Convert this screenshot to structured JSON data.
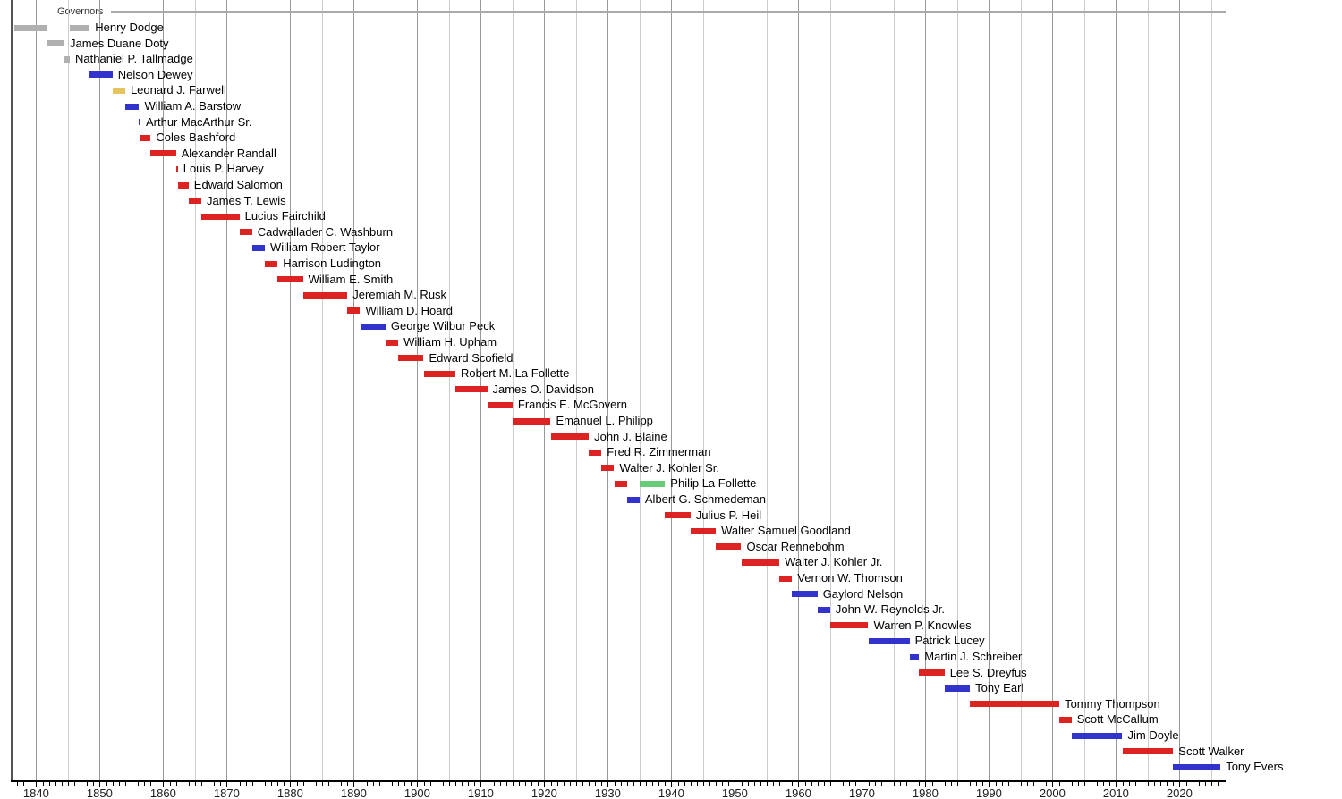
{
  "chart_data": {
    "type": "timeline-gantt",
    "title": "Governors",
    "description": "Timeline of Wisconsin governors with one horizontal bar per term, colored by party",
    "x_axis": {
      "min": 1836,
      "max": 2027.3,
      "gridline_step_years": 5,
      "minor_tick_step_years": 1,
      "tick_labels": [
        "1840",
        "1850",
        "1860",
        "1870",
        "1880",
        "1890",
        "1900",
        "1910",
        "1920",
        "1930",
        "1940",
        "1950",
        "1960",
        "1970",
        "1980",
        "1990",
        "2000",
        "2010",
        "2020"
      ],
      "tick_label_years": [
        1840,
        1850,
        1860,
        1870,
        1880,
        1890,
        1900,
        1910,
        1920,
        1930,
        1940,
        1950,
        1960,
        1970,
        1980,
        1990,
        2000,
        2010,
        2020
      ]
    },
    "colors": {
      "territorial": "#b0b0b0",
      "democratic": "#3232cd",
      "republican": "#dd2222",
      "whig": "#e6c35c",
      "progressive": "#66cc77",
      "grid_minor": "#cccccc",
      "grid_major": "#999999",
      "header_line": "#aaaaaa",
      "axis": "#000000"
    },
    "rows": [
      {
        "name": "Henry Dodge",
        "terms": [
          {
            "start": 1836.5,
            "end": 1841.7,
            "party": "territorial"
          },
          {
            "start": 1845.3,
            "end": 1848.43,
            "party": "territorial"
          }
        ]
      },
      {
        "name": "James Duane Doty",
        "terms": [
          {
            "start": 1841.7,
            "end": 1844.45,
            "party": "territorial"
          }
        ]
      },
      {
        "name": "Nathaniel P. Tallmadge",
        "terms": [
          {
            "start": 1844.45,
            "end": 1845.3,
            "party": "territorial"
          }
        ]
      },
      {
        "name": "Nelson Dewey",
        "terms": [
          {
            "start": 1848.43,
            "end": 1852.02,
            "party": "democratic"
          }
        ]
      },
      {
        "name": "Leonard J. Farwell",
        "terms": [
          {
            "start": 1852.02,
            "end": 1854.02,
            "party": "whig"
          }
        ]
      },
      {
        "name": "William A. Barstow",
        "terms": [
          {
            "start": 1854.02,
            "end": 1856.21,
            "party": "democratic"
          }
        ]
      },
      {
        "name": "Arthur MacArthur Sr.",
        "terms": [
          {
            "start": 1856.21,
            "end": 1856.24,
            "party": "democratic"
          }
        ]
      },
      {
        "name": "Coles Bashford",
        "terms": [
          {
            "start": 1856.24,
            "end": 1858.02,
            "party": "republican"
          }
        ]
      },
      {
        "name": "Alexander Randall",
        "terms": [
          {
            "start": 1858.02,
            "end": 1862.0,
            "party": "republican"
          }
        ]
      },
      {
        "name": "Louis P. Harvey",
        "terms": [
          {
            "start": 1862.0,
            "end": 1862.3,
            "party": "republican"
          }
        ]
      },
      {
        "name": "Edward Salomon",
        "terms": [
          {
            "start": 1862.3,
            "end": 1864.0,
            "party": "republican"
          }
        ]
      },
      {
        "name": "James T. Lewis",
        "terms": [
          {
            "start": 1864.0,
            "end": 1866.0,
            "party": "republican"
          }
        ]
      },
      {
        "name": "Lucius Fairchild",
        "terms": [
          {
            "start": 1866.0,
            "end": 1872.0,
            "party": "republican"
          }
        ]
      },
      {
        "name": "Cadwallader C. Washburn",
        "terms": [
          {
            "start": 1872.0,
            "end": 1874.0,
            "party": "republican"
          }
        ]
      },
      {
        "name": "William Robert Taylor",
        "terms": [
          {
            "start": 1874.0,
            "end": 1876.0,
            "party": "democratic"
          }
        ]
      },
      {
        "name": "Harrison Ludington",
        "terms": [
          {
            "start": 1876.0,
            "end": 1878.0,
            "party": "republican"
          }
        ]
      },
      {
        "name": "William E. Smith",
        "terms": [
          {
            "start": 1878.0,
            "end": 1882.0,
            "party": "republican"
          }
        ]
      },
      {
        "name": "Jeremiah M. Rusk",
        "terms": [
          {
            "start": 1882.0,
            "end": 1889.0,
            "party": "republican"
          }
        ]
      },
      {
        "name": "William D. Hoard",
        "terms": [
          {
            "start": 1889.0,
            "end": 1891.0,
            "party": "republican"
          }
        ]
      },
      {
        "name": "George Wilbur Peck",
        "terms": [
          {
            "start": 1891.0,
            "end": 1895.0,
            "party": "democratic"
          }
        ]
      },
      {
        "name": "William H. Upham",
        "terms": [
          {
            "start": 1895.0,
            "end": 1897.0,
            "party": "republican"
          }
        ]
      },
      {
        "name": "Edward Scofield",
        "terms": [
          {
            "start": 1897.0,
            "end": 1901.0,
            "party": "republican"
          }
        ]
      },
      {
        "name": "Robert M. La Follette",
        "terms": [
          {
            "start": 1901.0,
            "end": 1906.0,
            "party": "republican"
          }
        ]
      },
      {
        "name": "James O. Davidson",
        "terms": [
          {
            "start": 1906.0,
            "end": 1911.0,
            "party": "republican"
          }
        ]
      },
      {
        "name": "Francis E. McGovern",
        "terms": [
          {
            "start": 1911.0,
            "end": 1915.0,
            "party": "republican"
          }
        ]
      },
      {
        "name": "Emanuel L. Philipp",
        "terms": [
          {
            "start": 1915.0,
            "end": 1921.0,
            "party": "republican"
          }
        ]
      },
      {
        "name": "John J. Blaine",
        "terms": [
          {
            "start": 1921.0,
            "end": 1927.0,
            "party": "republican"
          }
        ]
      },
      {
        "name": "Fred R. Zimmerman",
        "terms": [
          {
            "start": 1927.0,
            "end": 1929.0,
            "party": "republican"
          }
        ]
      },
      {
        "name": "Walter J. Kohler Sr.",
        "terms": [
          {
            "start": 1929.0,
            "end": 1931.0,
            "party": "republican"
          }
        ]
      },
      {
        "name": "Philip La Follette",
        "terms": [
          {
            "start": 1931.0,
            "end": 1933.0,
            "party": "republican"
          },
          {
            "start": 1935.0,
            "end": 1939.0,
            "party": "progressive"
          }
        ]
      },
      {
        "name": "Albert G. Schmedeman",
        "terms": [
          {
            "start": 1933.0,
            "end": 1935.0,
            "party": "democratic"
          }
        ]
      },
      {
        "name": "Julius P. Heil",
        "terms": [
          {
            "start": 1939.0,
            "end": 1943.0,
            "party": "republican"
          }
        ]
      },
      {
        "name": "Walter Samuel Goodland",
        "terms": [
          {
            "start": 1943.0,
            "end": 1947.0,
            "party": "republican"
          }
        ]
      },
      {
        "name": "Oscar Rennebohm",
        "terms": [
          {
            "start": 1947.0,
            "end": 1951.0,
            "party": "republican"
          }
        ]
      },
      {
        "name": "Walter J. Kohler Jr.",
        "terms": [
          {
            "start": 1951.0,
            "end": 1957.0,
            "party": "republican"
          }
        ]
      },
      {
        "name": "Vernon W. Thomson",
        "terms": [
          {
            "start": 1957.0,
            "end": 1959.0,
            "party": "republican"
          }
        ]
      },
      {
        "name": "Gaylord Nelson",
        "terms": [
          {
            "start": 1959.0,
            "end": 1963.0,
            "party": "democratic"
          }
        ]
      },
      {
        "name": "John W. Reynolds Jr.",
        "terms": [
          {
            "start": 1963.0,
            "end": 1965.0,
            "party": "democratic"
          }
        ]
      },
      {
        "name": "Warren P. Knowles",
        "terms": [
          {
            "start": 1965.0,
            "end": 1971.0,
            "party": "republican"
          }
        ]
      },
      {
        "name": "Patrick Lucey",
        "terms": [
          {
            "start": 1971.0,
            "end": 1977.5,
            "party": "democratic"
          }
        ]
      },
      {
        "name": "Martin J. Schreiber",
        "terms": [
          {
            "start": 1977.5,
            "end": 1979.0,
            "party": "democratic"
          }
        ]
      },
      {
        "name": "Lee S. Dreyfus",
        "terms": [
          {
            "start": 1979.0,
            "end": 1983.0,
            "party": "republican"
          }
        ]
      },
      {
        "name": "Tony Earl",
        "terms": [
          {
            "start": 1983.0,
            "end": 1987.0,
            "party": "democratic"
          }
        ]
      },
      {
        "name": "Tommy Thompson",
        "terms": [
          {
            "start": 1987.0,
            "end": 2001.08,
            "party": "republican"
          }
        ]
      },
      {
        "name": "Scott McCallum",
        "terms": [
          {
            "start": 2001.08,
            "end": 2003.0,
            "party": "republican"
          }
        ]
      },
      {
        "name": "Jim Doyle",
        "terms": [
          {
            "start": 2003.0,
            "end": 2011.0,
            "party": "democratic"
          }
        ]
      },
      {
        "name": "Scott Walker",
        "terms": [
          {
            "start": 2011.0,
            "end": 2019.0,
            "party": "republican"
          }
        ]
      },
      {
        "name": "Tony Evers",
        "terms": [
          {
            "start": 2019.0,
            "end": 2026.45,
            "party": "democratic"
          }
        ]
      }
    ]
  }
}
